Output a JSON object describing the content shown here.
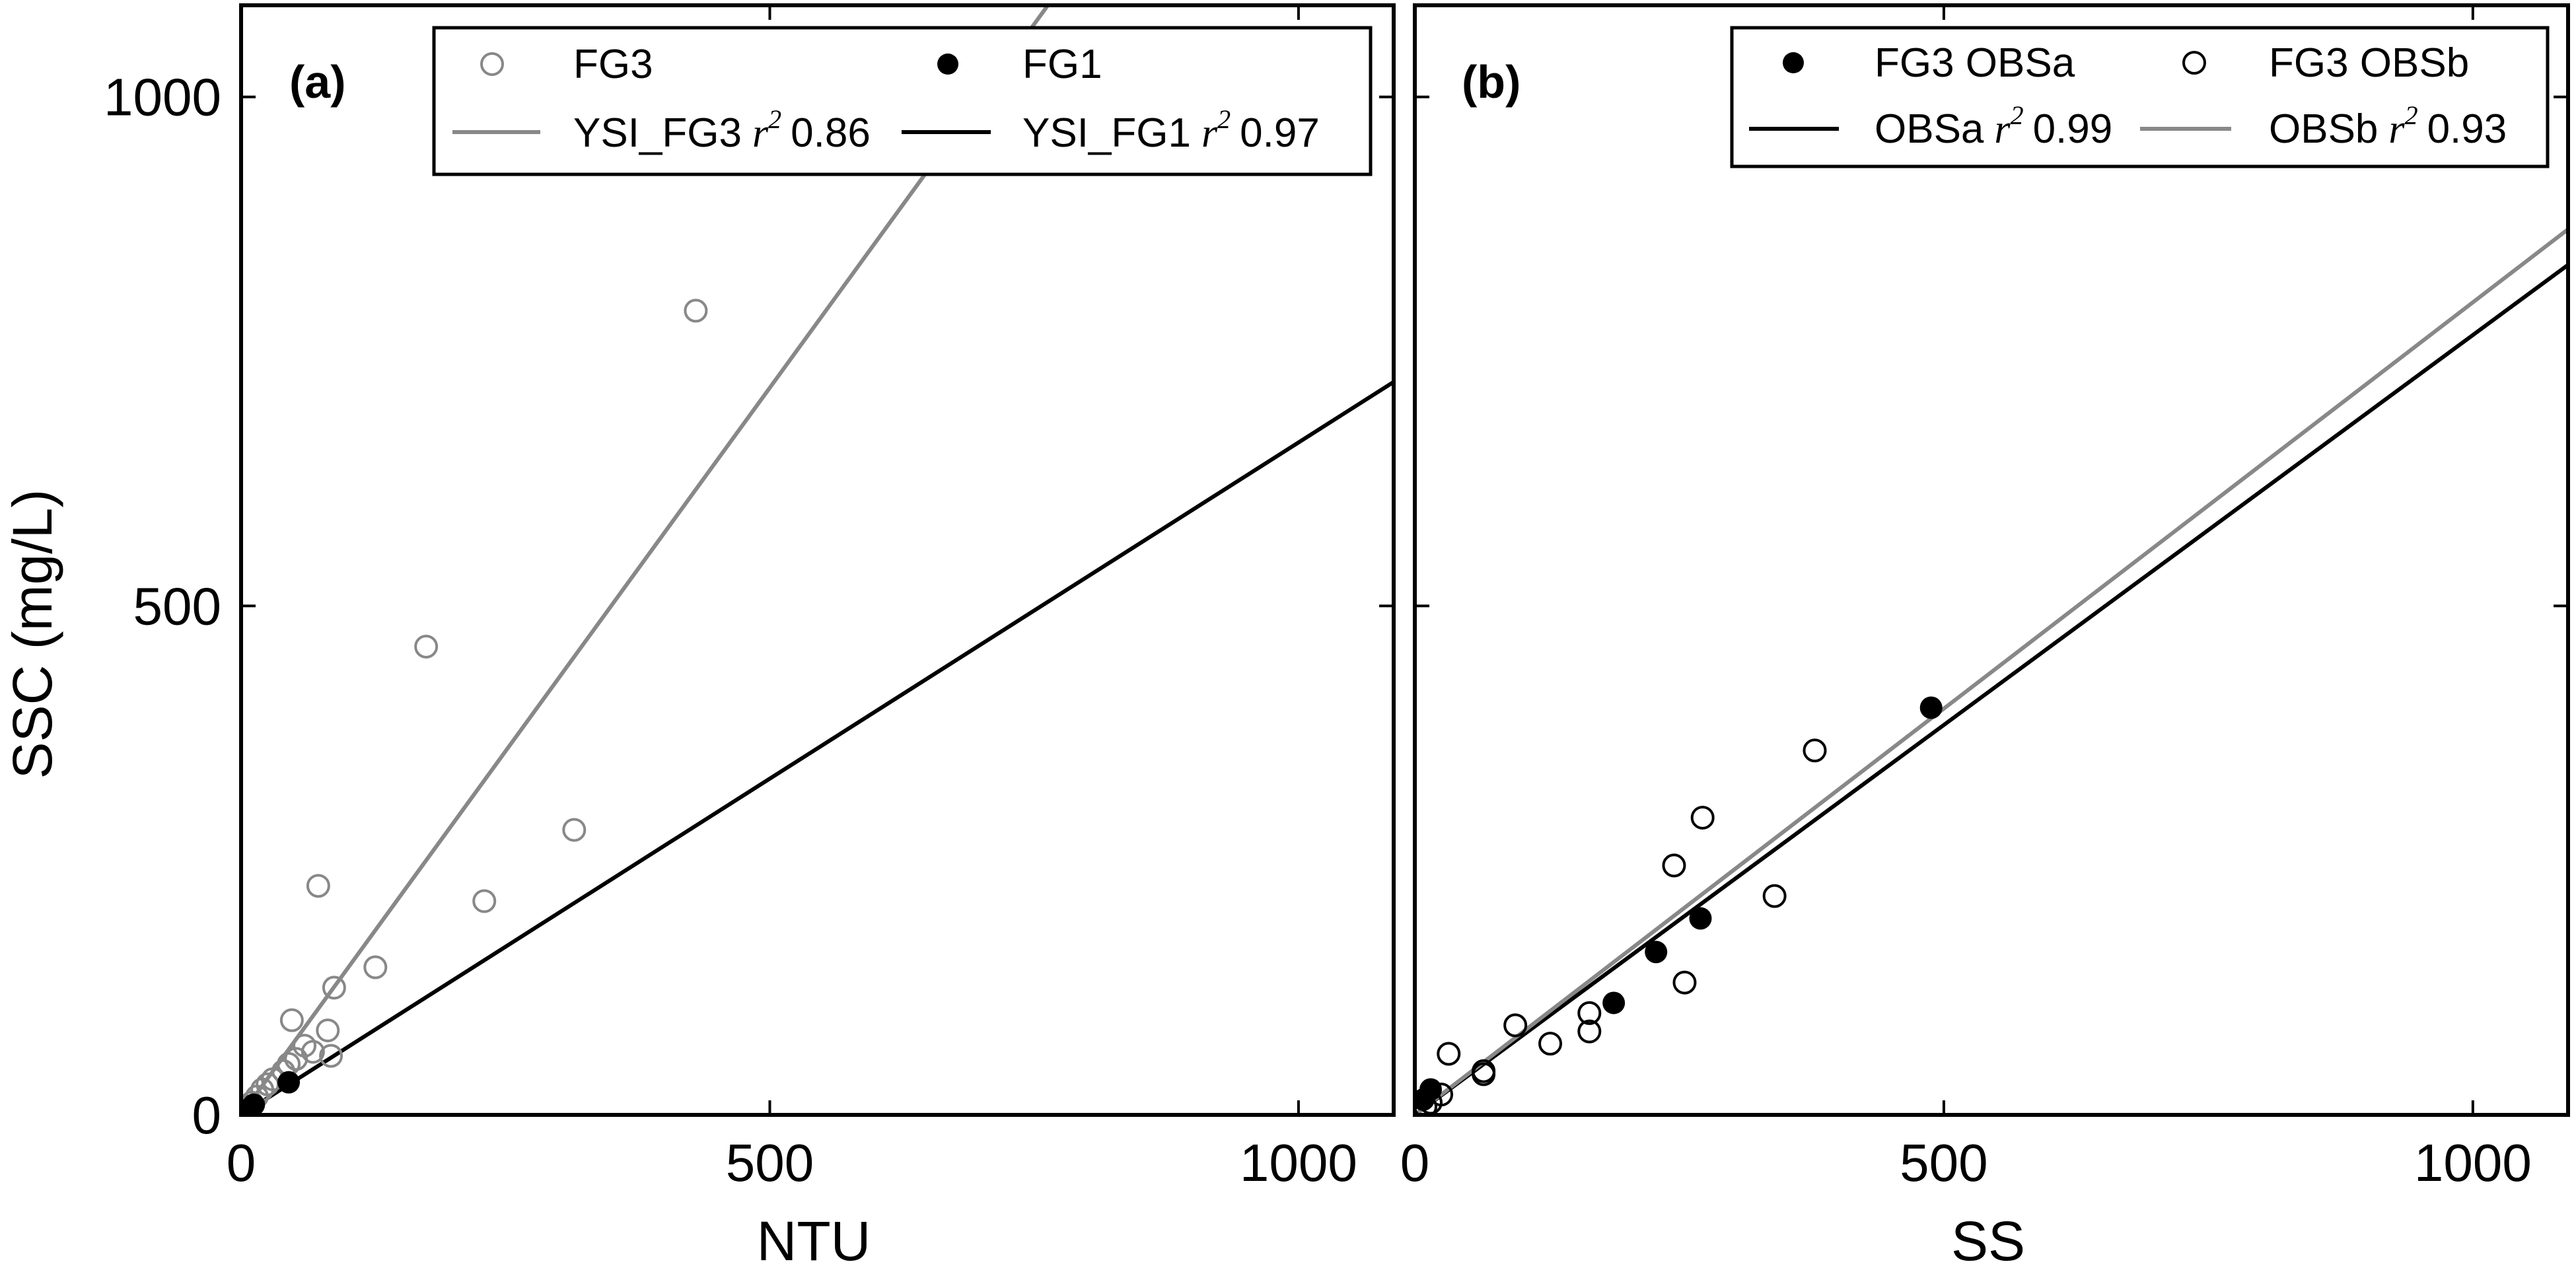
{
  "colors": {
    "fg3": "#888888",
    "fg1": "#000000",
    "obsb": "#888888",
    "obsa": "#000000"
  },
  "shared": {
    "ylabel": "SSC (mg/L)"
  },
  "chart_data": [
    {
      "type": "scatter",
      "panel_label": "(a)",
      "xlabel": "NTU",
      "ylabel": "SSC (mg/L)",
      "xlim": [
        0,
        1090
      ],
      "ylim": [
        0,
        1090
      ],
      "xticks": [
        "0",
        "500",
        "1000"
      ],
      "yticks": [
        "0",
        "500",
        "1000"
      ],
      "grid": false,
      "legend_position": "top-right",
      "legend": {
        "fg3": "FG3",
        "fg1": "FG1",
        "line_fg3_name": "YSI_FG3",
        "line_fg3_r2": "0.86",
        "line_fg1_name": "YSI_FG1",
        "line_fg1_r2": "0.97",
        "r2_symbol": "r",
        "r2_power": "2"
      },
      "series": [
        {
          "name": "FG3",
          "kind": "points",
          "marker": "open-circle",
          "color": "#888888",
          "x": [
            430,
            175,
            315,
            230,
            73,
            127,
            88,
            48,
            82,
            60,
            68,
            85,
            52,
            45,
            40,
            30,
            25,
            20,
            15,
            10,
            8,
            5
          ],
          "y": [
            790,
            460,
            280,
            210,
            225,
            145,
            125,
            93,
            83,
            68,
            62,
            58,
            55,
            50,
            43,
            35,
            30,
            25,
            18,
            12,
            8,
            5
          ]
        },
        {
          "name": "FG1",
          "kind": "points",
          "marker": "filled-circle",
          "color": "#000000",
          "x": [
            45,
            12,
            8
          ],
          "y": [
            32,
            10,
            6
          ]
        },
        {
          "name": "YSI_FG3",
          "kind": "line",
          "color": "#888888",
          "x": [
            0,
            770
          ],
          "y": [
            0,
            1100
          ]
        },
        {
          "name": "YSI_FG1",
          "kind": "line",
          "color": "#000000",
          "x": [
            0,
            1090
          ],
          "y": [
            0,
            720
          ]
        }
      ]
    },
    {
      "type": "scatter",
      "panel_label": "(b)",
      "xlabel": "SS",
      "ylabel": "",
      "xlim": [
        0,
        1090
      ],
      "ylim": [
        0,
        1090
      ],
      "xticks": [
        "0",
        "500",
        "1000"
      ],
      "yticks": [],
      "grid": false,
      "legend_position": "top-right",
      "legend": {
        "obsa": "FG3 OBSa",
        "obsb": "FG3 OBSb",
        "line_obsa_name": "OBSa",
        "line_obsa_r2": "0.99",
        "line_obsb_name": "OBSb",
        "line_obsb_r2": "0.93",
        "r2_symbol": "r",
        "r2_power": "2"
      },
      "series": [
        {
          "name": "FG3 OBSa",
          "kind": "points",
          "marker": "filled-circle",
          "color": "#000000",
          "x": [
            488,
            270,
            228,
            188,
            15,
            8
          ],
          "y": [
            400,
            193,
            160,
            110,
            25,
            15
          ]
        },
        {
          "name": "FG3 OBSb",
          "kind": "points",
          "marker": "open-circle",
          "color": "#000000",
          "x": [
            378,
            272,
            245,
            340,
            255,
            165,
            165,
            128,
            95,
            65,
            32,
            65,
            25,
            15,
            10
          ],
          "y": [
            358,
            292,
            245,
            215,
            130,
            100,
            82,
            70,
            88,
            43,
            60,
            40,
            20,
            12,
            8
          ]
        },
        {
          "name": "OBSa",
          "kind": "line",
          "color": "#000000",
          "x": [
            0,
            1090
          ],
          "y": [
            0,
            835
          ]
        },
        {
          "name": "OBSb",
          "kind": "line",
          "color": "#888888",
          "x": [
            0,
            1090
          ],
          "y": [
            0,
            870
          ]
        }
      ]
    }
  ]
}
